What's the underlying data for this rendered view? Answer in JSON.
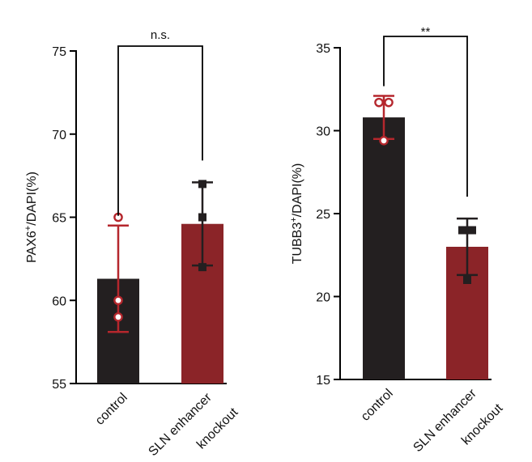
{
  "colors": {
    "control": "#231f20",
    "knockout": "#8b2428",
    "control_point": "#b5272d",
    "knockout_point": "#231f20"
  },
  "chart_data": [
    {
      "type": "bar",
      "ylabel_main": "PAX6",
      "ylabel_sup": "+",
      "ylabel_rest": "/DAPI(%)",
      "ylim": [
        55,
        75
      ],
      "yticks": [
        55,
        60,
        65,
        70,
        75
      ],
      "categories": [
        "control",
        "SLN enhancer knockout"
      ],
      "category_lines": [
        [
          "control"
        ],
        [
          "SLN enhancer",
          "knockout"
        ]
      ],
      "values": [
        61.3,
        64.6
      ],
      "errors": [
        3.2,
        2.5
      ],
      "points": [
        [
          65,
          60,
          59
        ],
        [
          67,
          65,
          62
        ]
      ],
      "significance": "n.s."
    },
    {
      "type": "bar",
      "ylabel_main": "TUBB3",
      "ylabel_sup": "+",
      "ylabel_rest": "/DAPI(%)",
      "ylim": [
        15,
        35
      ],
      "yticks": [
        15,
        20,
        25,
        30,
        35
      ],
      "categories": [
        "control",
        "SLN enhancer knockout"
      ],
      "category_lines": [
        [
          "control"
        ],
        [
          "SLN enhancer",
          "knockout"
        ]
      ],
      "values": [
        30.8,
        23.0
      ],
      "errors": [
        1.3,
        1.7
      ],
      "points": [
        [
          31.7,
          31.7,
          29.4
        ],
        [
          24.0,
          24.0,
          21.0
        ]
      ],
      "significance": "**"
    }
  ]
}
